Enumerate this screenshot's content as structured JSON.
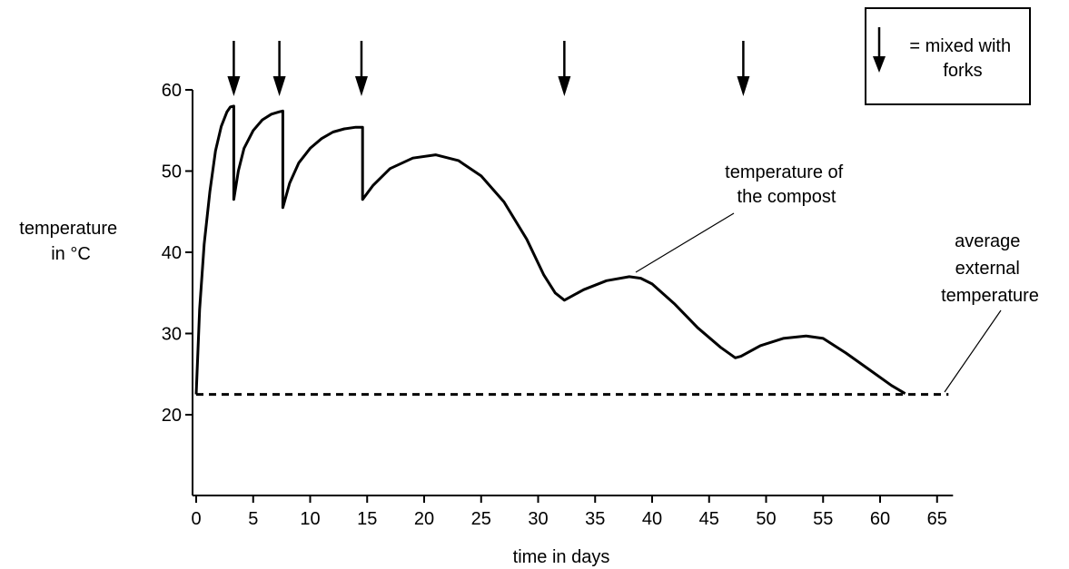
{
  "chart_data": {
    "type": "line",
    "title": "",
    "xlabel": "time in days",
    "ylabel": [
      "temperature",
      "in °C"
    ],
    "xlim": [
      0,
      66
    ],
    "ylim": [
      10,
      60
    ],
    "xticks": [
      0,
      5,
      10,
      15,
      20,
      25,
      30,
      35,
      40,
      45,
      50,
      55,
      60,
      65
    ],
    "yticks": [
      20,
      30,
      40,
      50,
      60
    ],
    "grid": false,
    "series": [
      {
        "name": "temperature of the compost",
        "style": "solid",
        "x": [
          0,
          0.3,
          0.7,
          1.2,
          1.7,
          2.2,
          2.7,
          3.0,
          3.3,
          3.3,
          3.7,
          4.2,
          5.0,
          5.8,
          6.6,
          7.3,
          7.6,
          7.6,
          8.2,
          9.0,
          10.0,
          11.0,
          12.0,
          13.0,
          14.0,
          14.6,
          14.6,
          15.5,
          17.0,
          19.0,
          21.0,
          23.0,
          25.0,
          27.0,
          29.0,
          30.5,
          31.5,
          32.3,
          32.3,
          34.0,
          36.0,
          38.0,
          39.0,
          40.0,
          42.0,
          44.0,
          46.0,
          47.3,
          47.8,
          47.8,
          49.5,
          51.5,
          53.5,
          55.0,
          57.0,
          59.0,
          61.0,
          62.2
        ],
        "y": [
          22.5,
          33,
          41,
          47.5,
          52.5,
          55.5,
          57.3,
          57.9,
          58.0,
          46.5,
          50,
          52.8,
          55.0,
          56.3,
          57.0,
          57.3,
          57.4,
          45.5,
          48.5,
          51.0,
          52.8,
          54.0,
          54.8,
          55.2,
          55.4,
          55.4,
          46.5,
          48.2,
          50.3,
          51.6,
          52.0,
          51.3,
          49.4,
          46.2,
          41.6,
          37.2,
          35.0,
          34.1,
          34.1,
          35.4,
          36.5,
          37.0,
          36.8,
          36.1,
          33.6,
          30.7,
          28.3,
          27.0,
          27.2,
          27.2,
          28.5,
          29.4,
          29.7,
          29.4,
          27.6,
          25.6,
          23.6,
          22.6
        ]
      },
      {
        "name": "average external temperature",
        "style": "dashed",
        "x": [
          0,
          66
        ],
        "y": [
          22.5,
          22.5
        ]
      }
    ],
    "mix_events": {
      "x": [
        3.3,
        7.3,
        14.5,
        32.3,
        48.0
      ]
    },
    "annotations": {
      "compost": [
        "temperature of",
        "the compost"
      ],
      "external": [
        "average",
        "external",
        "temperature"
      ]
    },
    "legend": {
      "position": "top-right",
      "text": [
        "= mixed with",
        "forks"
      ]
    }
  }
}
